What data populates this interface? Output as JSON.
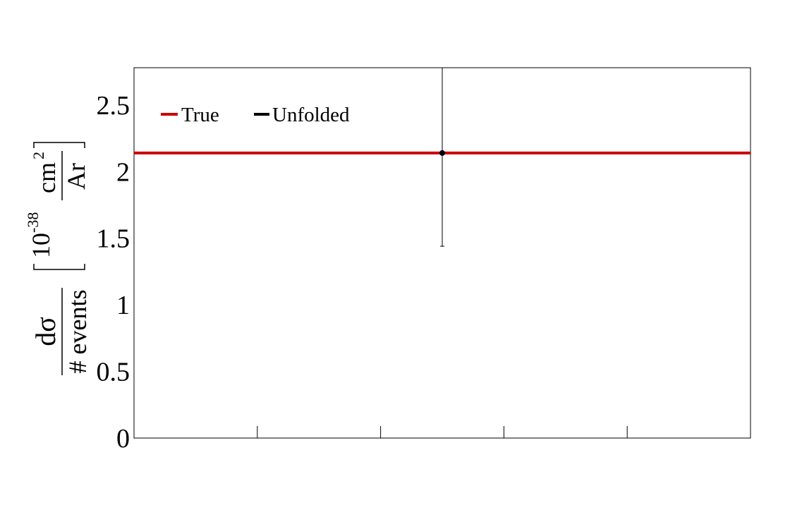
{
  "chart_data": {
    "type": "line",
    "title": "",
    "xlabel": "",
    "ylabel": {
      "numerator": "dσ",
      "denominator": "# events",
      "unit_prefix": "10",
      "unit_exponent": "-38",
      "unit_numerator": "cm",
      "unit_numerator_exponent": "2",
      "unit_denominator": "Ar"
    },
    "xlim": [
      0,
      1
    ],
    "ylim": [
      0,
      2.78
    ],
    "y_ticks": [
      0,
      0.5,
      1,
      1.5,
      2,
      2.5
    ],
    "y_tick_labels": [
      "0",
      "0.5",
      "1",
      "1.5",
      "2",
      "2.5"
    ],
    "x_ticks": [
      0.2,
      0.4,
      0.6,
      0.8
    ],
    "x_tick_labels": [],
    "grid": false,
    "legend": {
      "placement": "top-left",
      "entries": [
        {
          "label": "True",
          "color": "#cc0000"
        },
        {
          "label": "Unfolded",
          "color": "#000000"
        }
      ]
    },
    "series": [
      {
        "name": "True",
        "kind": "line",
        "color": "#cc0000",
        "x": [
          0,
          1
        ],
        "y": [
          2.14,
          2.14
        ]
      },
      {
        "name": "Unfolded",
        "kind": "errorbar",
        "color": "#000000",
        "x": [
          0.5
        ],
        "y": [
          2.14
        ],
        "y_err_low": [
          0.7
        ],
        "y_err_high": [
          0.64
        ]
      }
    ]
  }
}
